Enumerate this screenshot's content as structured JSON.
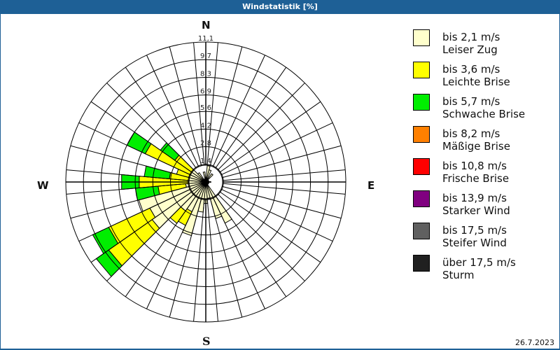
{
  "header": {
    "title": "Windstatistik [%]"
  },
  "compass": {
    "n": "N",
    "e": "E",
    "s": "S",
    "w": "W"
  },
  "footer": {
    "date": "26.7.2023"
  },
  "legend": [
    {
      "line1": "bis 2,1 m/s",
      "line2": "Leiser Zug",
      "color": "#ffffcc"
    },
    {
      "line1": "bis 3,6 m/s",
      "line2": "Leichte Brise",
      "color": "#ffff00"
    },
    {
      "line1": "bis 5,7 m/s",
      "line2": "Schwache Brise",
      "color": "#00ee00"
    },
    {
      "line1": "bis 8,2 m/s",
      "line2": "Mäßige Brise",
      "color": "#ff8000"
    },
    {
      "line1": "bis 10,8 m/s",
      "line2": "Frische Brise",
      "color": "#ff0000"
    },
    {
      "line1": "bis 13,9 m/s",
      "line2": "Starker Wind",
      "color": "#800080"
    },
    {
      "line1": "bis 17,5 m/s",
      "line2": "Steifer Wind",
      "color": "#606060"
    },
    {
      "line1": "über 17,5 m/s",
      "line2": "Sturm",
      "color": "#202020"
    }
  ],
  "chart_data": {
    "type": "polar-stacked-bar (wind rose)",
    "title": "Windstatistik [%]",
    "unit": "%",
    "sectors": 36,
    "sector_width_deg": 10,
    "rings": [
      "1,4",
      "2,8",
      "4,2",
      "5,6",
      "6,9",
      "8,3",
      "9,7",
      "11,1"
    ],
    "ring_values": [
      1.4,
      2.8,
      4.2,
      5.6,
      6.9,
      8.3,
      9.7,
      11.1
    ],
    "rmax": 11.1,
    "series": [
      "bis 2,1 m/s",
      "bis 3,6 m/s",
      "bis 5,7 m/s",
      "bis 8,2 m/s",
      "bis 10,8 m/s",
      "bis 13,9 m/s",
      "bis 17,5 m/s",
      "über 17,5 m/s"
    ],
    "bars": [
      {
        "dir": 10,
        "values": [
          1.0,
          0.3,
          0,
          0,
          0,
          0,
          0,
          0
        ]
      },
      {
        "dir": 20,
        "values": [
          0.6,
          0.4,
          0,
          0,
          0,
          0,
          0,
          0
        ]
      },
      {
        "dir": 40,
        "values": [
          0.5,
          0.3,
          0,
          0,
          0,
          0,
          0,
          0
        ]
      },
      {
        "dir": 90,
        "values": [
          0.4,
          0,
          0,
          0,
          0,
          0,
          0,
          0
        ]
      },
      {
        "dir": 150,
        "values": [
          3.6,
          0,
          0,
          0,
          0,
          0,
          0,
          0
        ]
      },
      {
        "dir": 160,
        "values": [
          3.0,
          0,
          0,
          0,
          0,
          0,
          0,
          0
        ]
      },
      {
        "dir": 170,
        "values": [
          1.3,
          0,
          0,
          0,
          0,
          0,
          0,
          0
        ]
      },
      {
        "dir": 180,
        "values": [
          1.7,
          0,
          0,
          0,
          0,
          0,
          0,
          0
        ]
      },
      {
        "dir": 190,
        "values": [
          2.4,
          0,
          0,
          0,
          0,
          0,
          0,
          0
        ]
      },
      {
        "dir": 200,
        "values": [
          4.4,
          0,
          0,
          0,
          0,
          0,
          0,
          0
        ]
      },
      {
        "dir": 210,
        "values": [
          2.6,
          1.2,
          0,
          0,
          0,
          0,
          0,
          0
        ]
      },
      {
        "dir": 220,
        "values": [
          2.8,
          1.2,
          0,
          0,
          0,
          0,
          0,
          0
        ]
      },
      {
        "dir": 230,
        "values": [
          5.2,
          4.2,
          1.2,
          0,
          0,
          0,
          0,
          0
        ]
      },
      {
        "dir": 240,
        "values": [
          4.9,
          3.6,
          1.4,
          0,
          0,
          0,
          0,
          0
        ]
      },
      {
        "dir": 250,
        "values": [
          5.5,
          0,
          0,
          0,
          0,
          0,
          0,
          0
        ]
      },
      {
        "dir": 260,
        "values": [
          1.6,
          2.2,
          1.8,
          0,
          0,
          0,
          0,
          0
        ]
      },
      {
        "dir": 270,
        "values": [
          1.2,
          4.1,
          1.4,
          0,
          0,
          0,
          0,
          0
        ]
      },
      {
        "dir": 280,
        "values": [
          1.0,
          1.9,
          2.0,
          0,
          0,
          0,
          0,
          0
        ]
      },
      {
        "dir": 290,
        "values": [
          0.8,
          1.6,
          0,
          0,
          0,
          0,
          0,
          0
        ]
      },
      {
        "dir": 300,
        "values": [
          1.0,
          4.3,
          1.6,
          0,
          0,
          0,
          0,
          0
        ]
      },
      {
        "dir": 310,
        "values": [
          0.8,
          2.2,
          1.4,
          0,
          0,
          0,
          0,
          0
        ]
      },
      {
        "dir": 320,
        "values": [
          0.6,
          0.3,
          0,
          0,
          0,
          0,
          0,
          0
        ]
      },
      {
        "dir": 350,
        "values": [
          0.8,
          0,
          0,
          0,
          0,
          0,
          0,
          0
        ]
      }
    ]
  }
}
